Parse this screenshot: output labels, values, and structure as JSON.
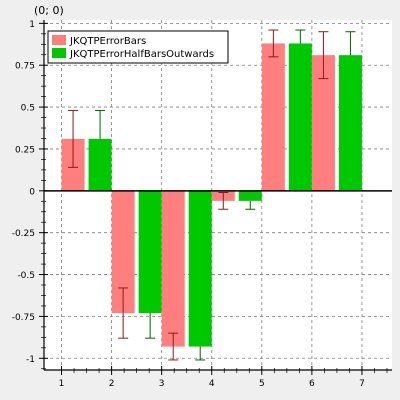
{
  "coordinate_readout": "(0; 0)",
  "chart_data": {
    "type": "bar",
    "title": "",
    "xlabel": "",
    "ylabel": "",
    "x_ticks": [
      1,
      2,
      3,
      4,
      5,
      6,
      7
    ],
    "y_ticks": [
      "1",
      "0.75",
      "0.5",
      "0.25",
      "0",
      "-0.25",
      "-0.5",
      "-0.75",
      "-1"
    ],
    "xlim": [
      0.65,
      7.6
    ],
    "ylim": [
      -1.07,
      1.02
    ],
    "grid": true,
    "legend_position": "top-left",
    "series": [
      {
        "name": "JKQTPErrorBars",
        "color": "#ff7f7f",
        "error_style": "symmetric",
        "points": [
          {
            "x": 1.5,
            "y": 0.31,
            "err": 0.17
          },
          {
            "x": 2.5,
            "y": -0.73,
            "err": 0.15
          },
          {
            "x": 3.5,
            "y": -0.93,
            "err": 0.08
          },
          {
            "x": 4.5,
            "y": -0.06,
            "err": 0.05
          },
          {
            "x": 5.5,
            "y": 0.88,
            "err": 0.08
          },
          {
            "x": 6.5,
            "y": 0.81,
            "err": 0.14
          }
        ]
      },
      {
        "name": "JKQTPErrorHalfBarsOutwards",
        "color": "#00c800",
        "error_style": "half-outwards",
        "points": [
          {
            "x": 1.5,
            "y": 0.31,
            "err": 0.17
          },
          {
            "x": 2.5,
            "y": -0.73,
            "err": 0.15
          },
          {
            "x": 3.5,
            "y": -0.93,
            "err": 0.08
          },
          {
            "x": 4.5,
            "y": -0.06,
            "err": 0.05
          },
          {
            "x": 5.5,
            "y": 0.88,
            "err": 0.08
          },
          {
            "x": 6.5,
            "y": 0.81,
            "err": 0.14
          }
        ]
      }
    ]
  }
}
